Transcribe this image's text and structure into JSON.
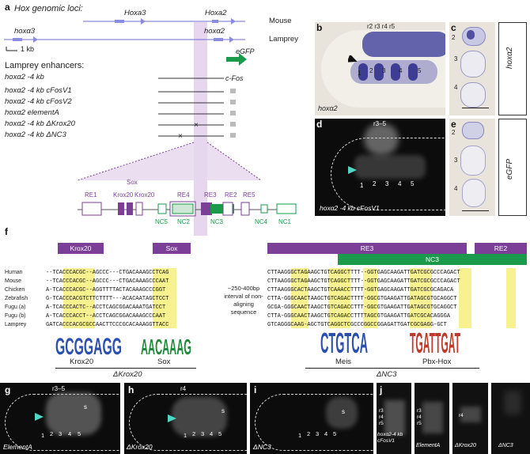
{
  "panels": {
    "a": "a",
    "b": "b",
    "c": "c",
    "d": "d",
    "e": "e",
    "f": "f",
    "g": "g",
    "h": "h",
    "i": "i",
    "j": "j"
  },
  "a": {
    "header": "Hox genomic loci:",
    "genes_mouse": [
      "Hoxa3",
      "Hoxa2"
    ],
    "genes_lamprey": [
      "hoxα3",
      "hoxα2"
    ],
    "species": [
      "Mouse",
      "Lamprey"
    ],
    "scale": "1 kb",
    "enhancers_title": "Lamprey enhancers:",
    "constructs": [
      "hoxα2 -4 kb",
      "hoxα2 -4 kb cFosV1",
      "hoxα2 -4 kb cFosV2",
      "hoxα2 elementA",
      "hoxα2 -4 kb ΔKrox20",
      "hoxα2 -4 kb ΔNC3"
    ],
    "reporter": "eGFP",
    "promoter": "c-Fos",
    "elements_top": [
      "RE1",
      "Krox20",
      "Sox",
      "Krox20",
      "RE4",
      "RE3",
      "RE2",
      "RE5"
    ],
    "elements_bottom": [
      "NC5",
      "NC2",
      "NC3",
      "NC4",
      "NC1"
    ],
    "colors": {
      "purple": "#7b3f98",
      "green": "#1a9a4a",
      "lavender": "#e6d6ee",
      "blue": "#7f8ee0"
    }
  },
  "b": {
    "gene": "hoxα2",
    "rhombomeres_top": "r2 r3 r4 r5",
    "numbers": [
      "1",
      "2",
      "3",
      "4",
      "5"
    ]
  },
  "c": {
    "side_label": "hoxα2",
    "numbers": [
      "2",
      "3",
      "4"
    ]
  },
  "d": {
    "construct": "hoxα2 -4 kb cFosV1",
    "region": "r3–5",
    "numbers": [
      "1",
      "2",
      "3",
      "4",
      "5"
    ]
  },
  "e": {
    "side_label": "eGFP",
    "numbers": [
      "2",
      "3",
      "4"
    ]
  },
  "f": {
    "left_bars": [
      "Krox20",
      "Sox"
    ],
    "right_bars": [
      "RE3",
      "NC3",
      "RE2"
    ],
    "species": [
      "Human",
      "Mouse",
      "Chicken",
      "Zebrafish",
      "Fugu (a)",
      "Fugu (b)",
      "Lamprey"
    ],
    "seq_left": [
      "--TCACCCACGC--AGCCC---CTGACAAAGCCTCAG",
      "--TCACCCACGC--AGCCC---CTGACAAAGCCCAAT",
      "A-TCACCCACGC--AGGTTTTACTACAAAGCCCGGT",
      "G-TCACCCACGTCTTCTTTT---ACACAATAGCTCCT",
      "A-TCACCCACTC--ACCTCAGCGGACAAATGATCCT",
      "A-TCACCCACCT--ACCTCAGCGGACAAAGCCCAAT",
      "GATCACCCACGCGCCAACTTCCCGCACAAAGGTTACC"
    ],
    "gap_note": "~250-400bp interval of non-aligning sequence",
    "seq_right": [
      "CTTAAGGGCTAGAAGCTGTCAGGCTTTT--GGTGAGCAAGATTGATCGCGCCCAGACT",
      "CTTAAGGGCTAGAAGCTGTCAGGCTTTT--GGTGAGCAAGATTGATCGCGCCCAGACT",
      "CTTAAGGGCACTAAGCTGTCAAACCTTTT-GGTGAGCAAGATTGATCGCGCAGACA",
      "CTTA-GGGCAACTAAGCTGTCAGACTTTT-GGCGTGAAGATTGATAGCGTGCAGGCT",
      "GCGA-GGGCAACTAAGCTGTCAGACCTTT-GGCGTGAAGATTGATAGCGTGCAGGCT",
      "CTTA-GGGCAACTAAGCTGTCAGACCTTTTAGCGTGAAGATTGATCGCACAGGGA",
      "GTCAGGGCAAG-AGCTGTCAGGCTCGCCCGGCCGGAGATTGATCGCGAGG-GCT"
    ],
    "motifs": [
      "Krox20",
      "Sox",
      "Meis",
      "Pbx-Hox"
    ],
    "deletions": [
      "ΔKrox20",
      "ΔNC3"
    ]
  },
  "g": {
    "construct": "ElementA",
    "region": "r3–5",
    "s": "s",
    "numbers": [
      "1",
      "2",
      "3",
      "4",
      "5"
    ]
  },
  "h": {
    "construct": "ΔKrox20",
    "region": "r4",
    "s": "s",
    "numbers": [
      "1",
      "2",
      "3",
      "4",
      "5"
    ]
  },
  "i": {
    "construct": "ΔNC3",
    "s": "s",
    "numbers": [
      "1",
      "2",
      "3",
      "4",
      "5"
    ]
  },
  "j": {
    "strips": [
      {
        "label": "hoxα2-4 kb cFosV1",
        "r": [
          "r3",
          "r4",
          "r5"
        ]
      },
      {
        "label": "ElementA",
        "r": [
          "r3",
          "r4",
          "r5"
        ]
      },
      {
        "label": "ΔKrox20",
        "r": [
          "r4"
        ]
      },
      {
        "label": "ΔNC3",
        "r": []
      }
    ]
  }
}
